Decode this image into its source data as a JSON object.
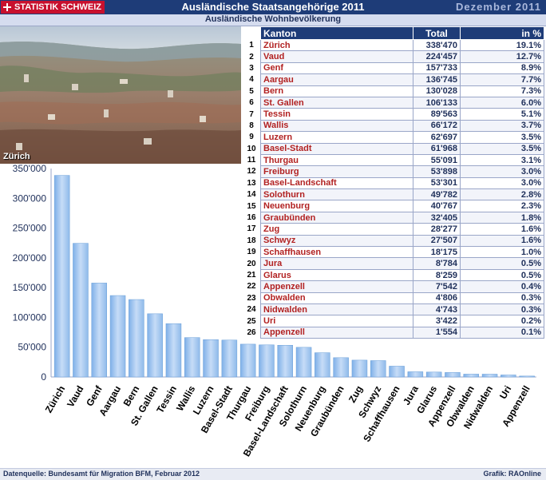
{
  "header": {
    "logo_text": "STATISTIK SCHWEIZ",
    "title": "Ausländische Staatsangehörige 2011",
    "date": "Dezember 2011"
  },
  "subtitle": "Ausländische Wohnbevölkerung",
  "photo_label": "Zürich",
  "table": {
    "headers": [
      "Kanton",
      "Total",
      "in %"
    ],
    "rows": [
      {
        "rank": "1",
        "kanton": "Zürich",
        "total": "338'470",
        "pct": "19.1%"
      },
      {
        "rank": "2",
        "kanton": "Vaud",
        "total": "224'457",
        "pct": "12.7%"
      },
      {
        "rank": "3",
        "kanton": "Genf",
        "total": "157'733",
        "pct": "8.9%"
      },
      {
        "rank": "4",
        "kanton": "Aargau",
        "total": "136'745",
        "pct": "7.7%"
      },
      {
        "rank": "5",
        "kanton": "Bern",
        "total": "130'028",
        "pct": "7.3%"
      },
      {
        "rank": "6",
        "kanton": "St. Gallen",
        "total": "106'133",
        "pct": "6.0%"
      },
      {
        "rank": "7",
        "kanton": "Tessin",
        "total": "89'563",
        "pct": "5.1%"
      },
      {
        "rank": "8",
        "kanton": "Wallis",
        "total": "66'172",
        "pct": "3.7%"
      },
      {
        "rank": "9",
        "kanton": "Luzern",
        "total": "62'697",
        "pct": "3.5%"
      },
      {
        "rank": "10",
        "kanton": "Basel-Stadt",
        "total": "61'968",
        "pct": "3.5%"
      },
      {
        "rank": "11",
        "kanton": "Thurgau",
        "total": "55'091",
        "pct": "3.1%"
      },
      {
        "rank": "12",
        "kanton": "Freiburg",
        "total": "53'898",
        "pct": "3.0%"
      },
      {
        "rank": "13",
        "kanton": "Basel-Landschaft",
        "total": "53'301",
        "pct": "3.0%"
      },
      {
        "rank": "14",
        "kanton": "Solothurn",
        "total": "49'782",
        "pct": "2.8%"
      },
      {
        "rank": "15",
        "kanton": "Neuenburg",
        "total": "40'767",
        "pct": "2.3%"
      },
      {
        "rank": "16",
        "kanton": "Graubünden",
        "total": "32'405",
        "pct": "1.8%"
      },
      {
        "rank": "17",
        "kanton": "Zug",
        "total": "28'277",
        "pct": "1.6%"
      },
      {
        "rank": "18",
        "kanton": "Schwyz",
        "total": "27'507",
        "pct": "1.6%"
      },
      {
        "rank": "19",
        "kanton": "Schaffhausen",
        "total": "18'175",
        "pct": "1.0%"
      },
      {
        "rank": "20",
        "kanton": "Jura",
        "total": "8'784",
        "pct": "0.5%"
      },
      {
        "rank": "21",
        "kanton": "Glarus",
        "total": "8'259",
        "pct": "0.5%"
      },
      {
        "rank": "22",
        "kanton": "Appenzell",
        "total": "7'542",
        "pct": "0.4%"
      },
      {
        "rank": "23",
        "kanton": "Obwalden",
        "total": "4'806",
        "pct": "0.3%"
      },
      {
        "rank": "24",
        "kanton": "Nidwalden",
        "total": "4'743",
        "pct": "0.3%"
      },
      {
        "rank": "25",
        "kanton": "Uri",
        "total": "3'422",
        "pct": "0.2%"
      },
      {
        "rank": "26",
        "kanton": "Appenzell",
        "total": "1'554",
        "pct": "0.1%"
      }
    ]
  },
  "chart_data": {
    "type": "bar",
    "categories": [
      "Zürich",
      "Vaud",
      "Genf",
      "Aargau",
      "Bern",
      "St. Gallen",
      "Tessin",
      "Wallis",
      "Luzern",
      "Basel-Stadt",
      "Thurgau",
      "Freiburg",
      "Basel-Landschaft",
      "Solothurn",
      "Neuenburg",
      "Graubünden",
      "Zug",
      "Schwyz",
      "Schaffhausen",
      "Jura",
      "Glarus",
      "Appenzell",
      "Obwalden",
      "Nidwalden",
      "Uri",
      "Appenzell"
    ],
    "values": [
      338470,
      224457,
      157733,
      136745,
      130028,
      106133,
      89563,
      66172,
      62697,
      61968,
      55091,
      53898,
      53301,
      49782,
      40767,
      32405,
      28277,
      27507,
      18175,
      8784,
      8259,
      7542,
      4806,
      4743,
      3422,
      1554
    ],
    "ylim": [
      0,
      350000
    ],
    "yticks": [
      0,
      50000,
      100000,
      150000,
      200000,
      250000,
      300000,
      350000
    ],
    "ytick_labels": [
      "0",
      "50'000",
      "100'000",
      "150'000",
      "200'000",
      "250'000",
      "300'000",
      "350'000"
    ],
    "grid": false,
    "colors": {
      "bar_top": "#c6dcf7",
      "bar_bottom": "#7fb0e8",
      "bar_edge": "#6a9fd8"
    }
  },
  "footer": {
    "source": "Datenquelle: Bundesamt für Migration BFM, Februar  2012",
    "credit": "Grafik: RAOnline"
  },
  "colors": {
    "header_bg": "#1e3c78",
    "kanton_text": "#b22222",
    "value_text": "#1e2f5a"
  }
}
